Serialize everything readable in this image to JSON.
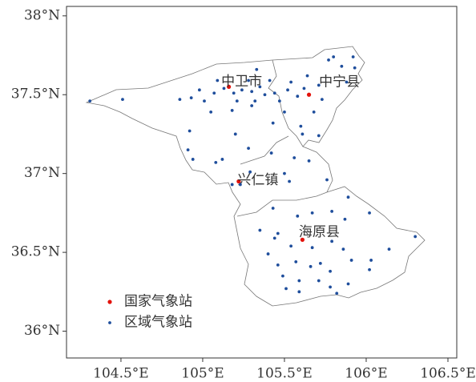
{
  "chart_data": {
    "type": "scatter",
    "xlim": [
      104.167,
      106.554
    ],
    "ylim": [
      35.83,
      38.06
    ],
    "xticks": [
      {
        "value": 104.5,
        "label": "104.5°E"
      },
      {
        "value": 105,
        "label": "105°E"
      },
      {
        "value": 105.5,
        "label": "105.5°E"
      },
      {
        "value": 106,
        "label": "106°E"
      },
      {
        "value": 106.5,
        "label": "106.5°E"
      }
    ],
    "yticks": [
      {
        "value": 36,
        "label": "36°N"
      },
      {
        "value": 36.5,
        "label": "36.5°N"
      },
      {
        "value": 37,
        "label": "37°N"
      },
      {
        "value": 37.5,
        "label": "37.5°N"
      },
      {
        "value": 38,
        "label": "38°N"
      }
    ],
    "legend": "bottom-left",
    "series": [
      {
        "name": "国家气象站",
        "color": "#e3120b",
        "labels": [
          "中卫市",
          "中宁县",
          "兴仁镇",
          "海原县"
        ],
        "x": [
          105.16,
          105.65,
          105.22,
          105.61
        ],
        "values": [
          37.55,
          37.5,
          36.95,
          36.58
        ]
      },
      {
        "name": "区域气象站",
        "color": "#1f4e9c",
        "x": [
          104.31,
          104.51,
          104.86,
          104.93,
          104.98,
          105.01,
          105.07,
          105.09,
          105.13,
          105.19,
          105.21,
          105.24,
          105.28,
          105.3,
          105.32,
          105.35,
          105.38,
          105.41,
          105.33,
          105.44,
          105.47,
          105.52,
          105.54,
          105.58,
          105.62,
          105.64,
          105.71,
          105.73,
          105.77,
          105.8,
          105.85,
          105.92,
          105.93,
          105.88,
          105.5,
          105.43,
          105.3,
          105.18,
          105.05,
          104.92,
          104.91,
          104.94,
          105.08,
          105.12,
          105.2,
          105.28,
          105.42,
          105.6,
          105.61,
          105.71,
          105.68,
          105.56,
          105.65,
          105.5,
          105.53,
          105.29,
          105.23,
          105.18,
          105.76,
          105.89,
          105.43,
          105.58,
          105.67,
          105.79,
          105.87,
          106.02,
          105.35,
          105.46,
          105.44,
          105.54,
          105.67,
          105.79,
          105.86,
          105.91,
          106.14,
          106.3,
          105.4,
          105.46,
          105.57,
          105.66,
          105.72,
          105.78,
          106.02,
          106.03,
          105.49,
          105.59,
          105.51,
          105.59,
          105.78,
          105.82,
          105.71,
          105.89
        ],
        "values": [
          37.46,
          37.47,
          37.47,
          37.48,
          37.53,
          37.46,
          37.51,
          37.59,
          37.54,
          37.51,
          37.46,
          37.53,
          37.59,
          37.52,
          37.46,
          37.55,
          37.5,
          37.59,
          37.66,
          37.51,
          37.46,
          37.53,
          37.58,
          37.49,
          37.54,
          37.62,
          37.56,
          37.47,
          37.72,
          37.74,
          37.68,
          37.74,
          37.67,
          37.58,
          37.39,
          37.32,
          37.43,
          37.4,
          37.39,
          37.27,
          37.15,
          37.09,
          37.07,
          37.09,
          37.25,
          37.16,
          37.13,
          37.3,
          37.25,
          37.24,
          37.39,
          37.1,
          37.08,
          37.0,
          36.95,
          37.01,
          36.93,
          36.93,
          36.96,
          36.85,
          36.78,
          36.73,
          36.75,
          36.76,
          36.71,
          36.75,
          36.64,
          36.62,
          36.59,
          36.54,
          36.53,
          36.57,
          36.52,
          36.45,
          36.52,
          36.6,
          36.49,
          36.42,
          36.44,
          36.41,
          36.43,
          36.38,
          36.39,
          36.45,
          36.35,
          36.32,
          36.27,
          36.25,
          36.28,
          36.24,
          36.32,
          36.3
        ]
      }
    ]
  }
}
